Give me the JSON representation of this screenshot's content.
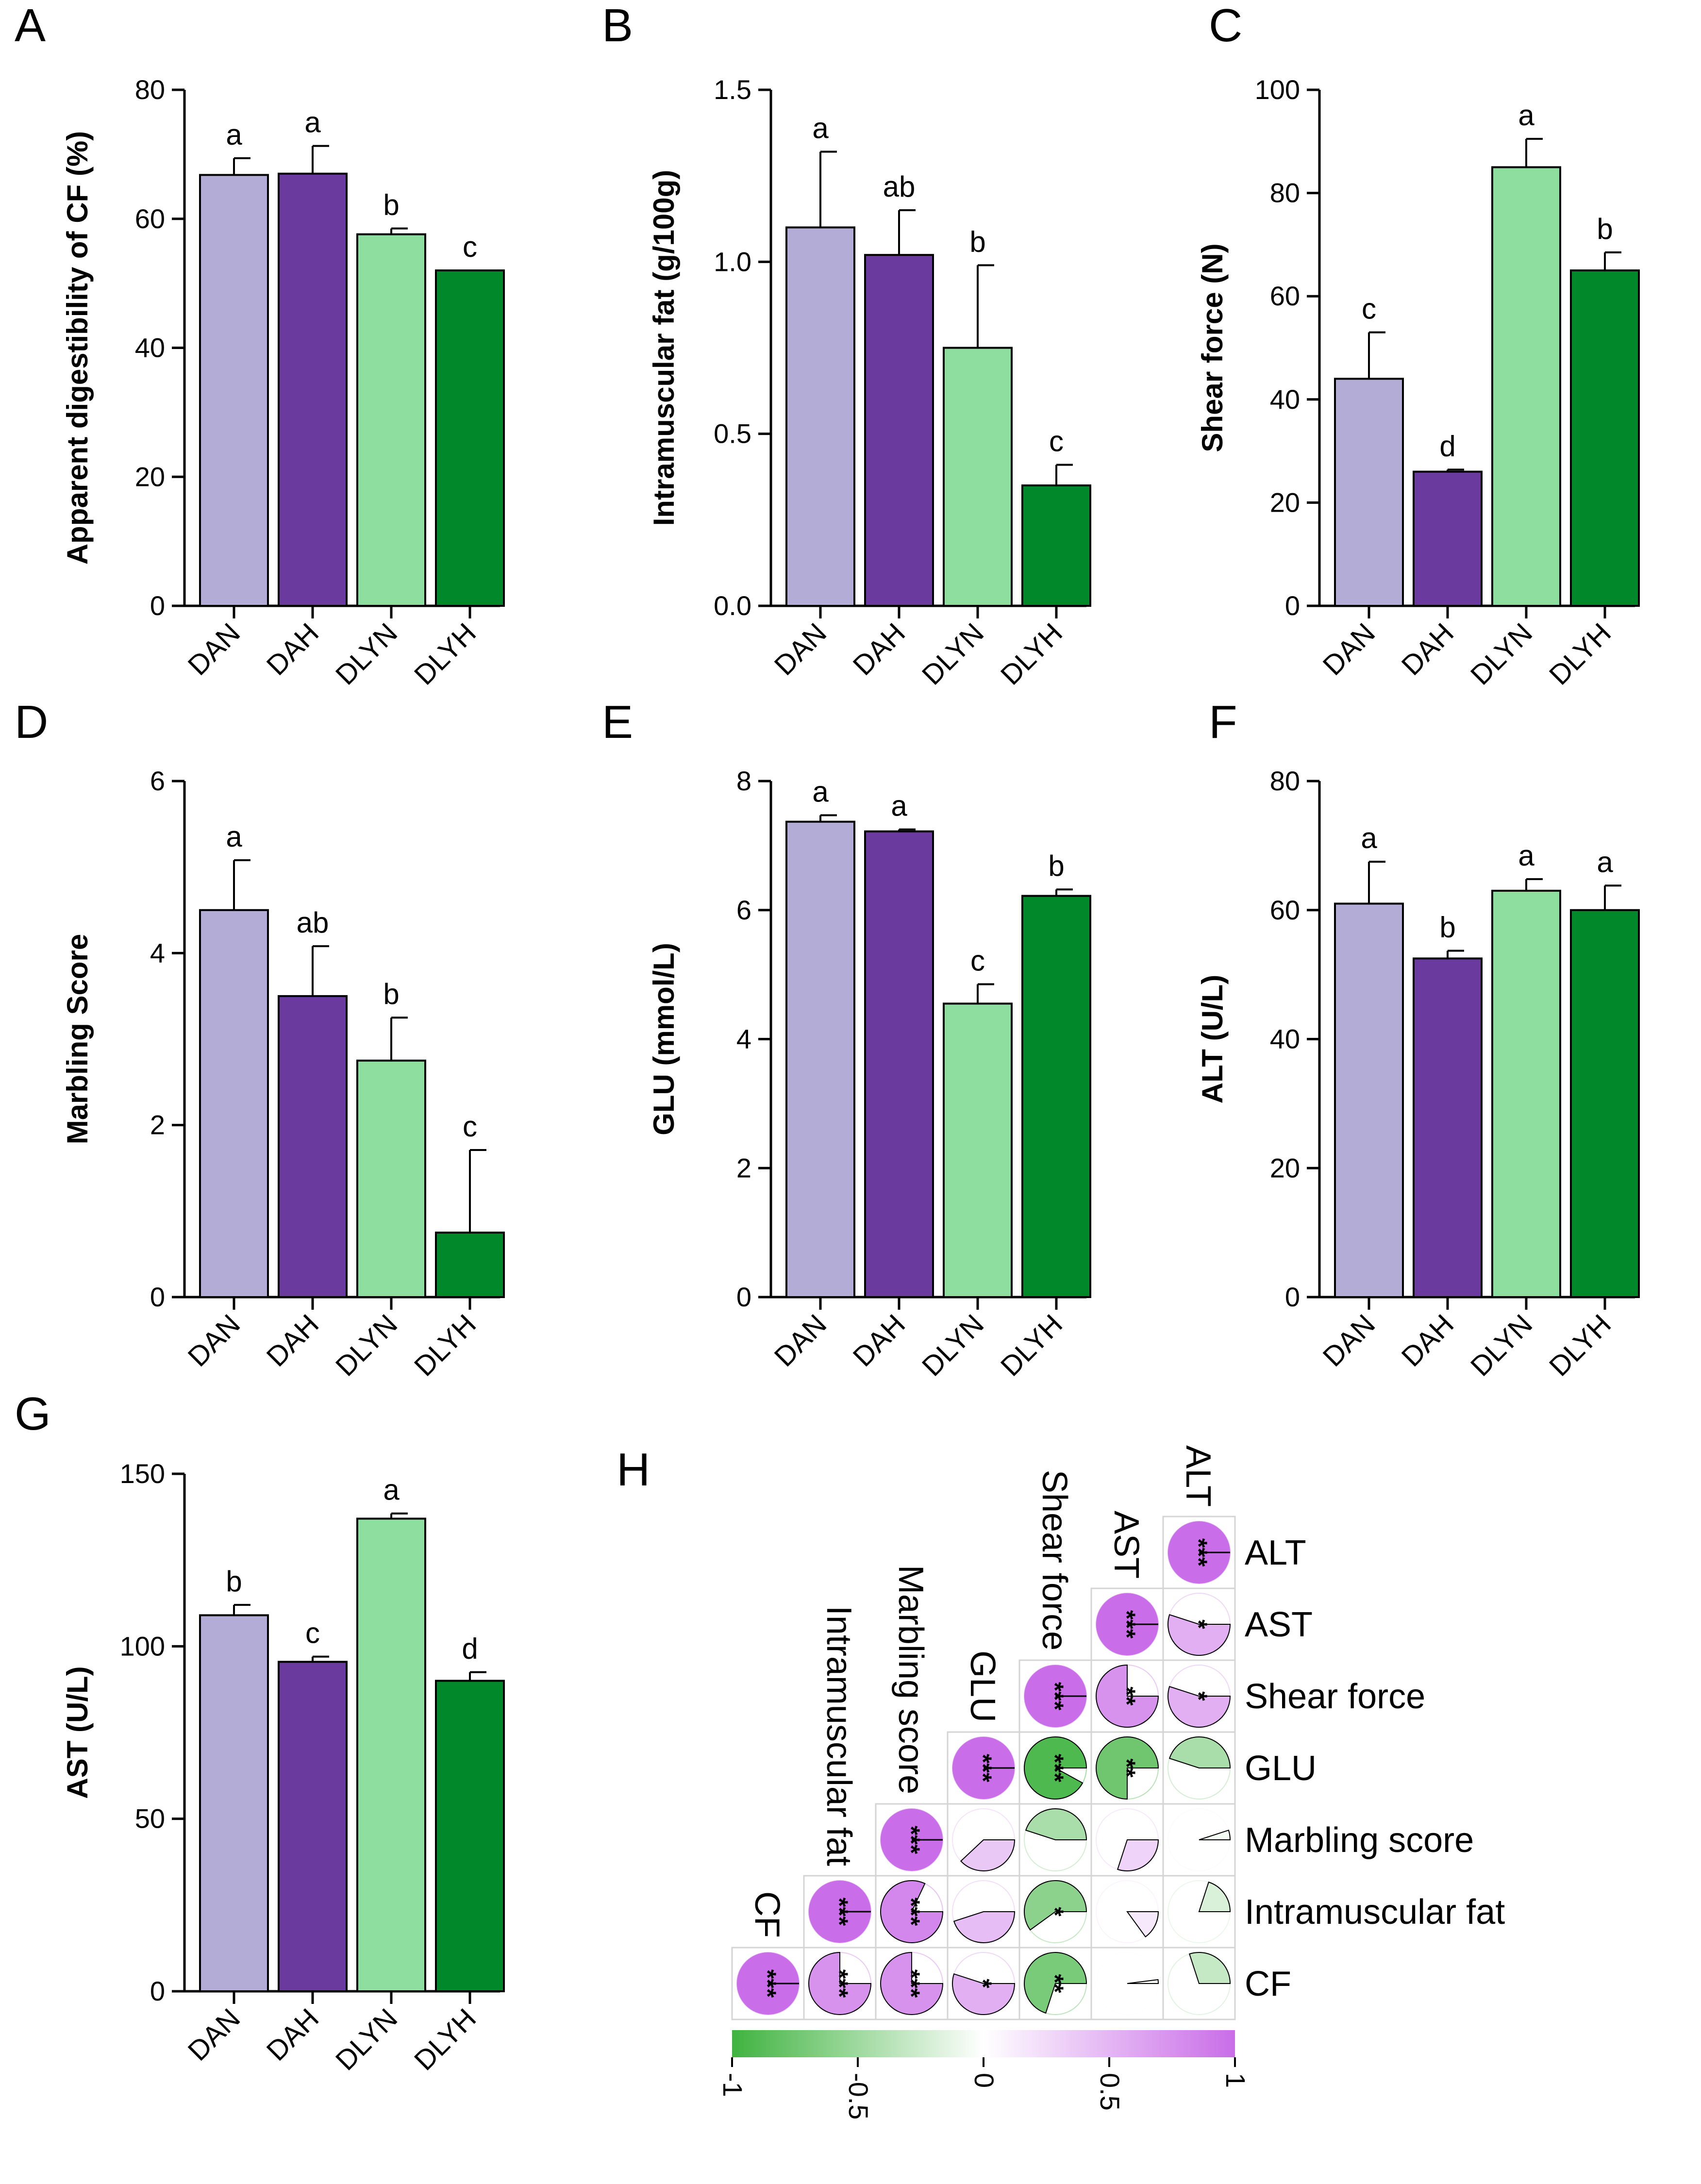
{
  "colors": {
    "DAN": "#b3acd6",
    "DAH": "#6a3a9e",
    "DLYN": "#8ede9f",
    "DLYH": "#00882a",
    "neg": "#3fb33f",
    "pos": "#c96de8"
  },
  "chart_data": [
    {
      "type": "bar",
      "panel": "A",
      "ylabel": "Apparent digestibility of CF (%)",
      "categories": [
        "DAN",
        "DAH",
        "DLYN",
        "DLYH"
      ],
      "values": [
        66.8,
        67.0,
        57.6,
        52.0
      ],
      "errors": [
        2.6,
        4.3,
        0.9,
        0.0
      ],
      "letters": [
        "a",
        "a",
        "b",
        "c"
      ],
      "ylim": [
        0,
        80
      ],
      "yticks": [
        "0",
        "20",
        "40",
        "60",
        "80"
      ]
    },
    {
      "type": "bar",
      "panel": "B",
      "ylabel": "Intramuscular fat (g/100g)",
      "categories": [
        "DAN",
        "DAH",
        "DLYN",
        "DLYH"
      ],
      "values": [
        1.1,
        1.02,
        0.75,
        0.35
      ],
      "errors": [
        0.22,
        0.13,
        0.24,
        0.06
      ],
      "letters": [
        "a",
        "ab",
        "b",
        "c"
      ],
      "ylim": [
        0,
        1.5
      ],
      "yticks": [
        "0.0",
        "0.5",
        "1.0",
        "1.5"
      ]
    },
    {
      "type": "bar",
      "panel": "C",
      "ylabel": "Shear force (N)",
      "categories": [
        "DAN",
        "DAH",
        "DLYN",
        "DLYH"
      ],
      "values": [
        44.0,
        26.0,
        85.0,
        65.0
      ],
      "errors": [
        9.0,
        0.4,
        5.5,
        3.5
      ],
      "letters": [
        "c",
        "d",
        "a",
        "b"
      ],
      "ylim": [
        0,
        100
      ],
      "yticks": [
        "0",
        "20",
        "40",
        "60",
        "80",
        "100"
      ]
    },
    {
      "type": "bar",
      "panel": "D",
      "ylabel": "Marbling Score",
      "categories": [
        "DAN",
        "DAH",
        "DLYN",
        "DLYH"
      ],
      "values": [
        4.5,
        3.5,
        2.75,
        0.75
      ],
      "errors": [
        0.58,
        0.58,
        0.5,
        0.96
      ],
      "letters": [
        "a",
        "ab",
        "b",
        "c"
      ],
      "ylim": [
        0,
        6
      ],
      "yticks": [
        "0",
        "2",
        "4",
        "6"
      ]
    },
    {
      "type": "bar",
      "panel": "E",
      "ylabel": "GLU (mmol/L)",
      "categories": [
        "DAN",
        "DAH",
        "DLYN",
        "DLYH"
      ],
      "values": [
        7.37,
        7.22,
        4.55,
        6.22
      ],
      "errors": [
        0.1,
        0.03,
        0.3,
        0.1
      ],
      "letters": [
        "a",
        "a",
        "c",
        "b"
      ],
      "ylim": [
        0,
        8
      ],
      "yticks": [
        "0",
        "2",
        "4",
        "6",
        "8"
      ]
    },
    {
      "type": "bar",
      "panel": "F",
      "ylabel": "ALT (U/L)",
      "categories": [
        "DAN",
        "DAH",
        "DLYN",
        "DLYH"
      ],
      "values": [
        61.0,
        52.5,
        63.0,
        60.0
      ],
      "errors": [
        6.5,
        1.2,
        1.8,
        3.8
      ],
      "letters": [
        "a",
        "b",
        "a",
        "a"
      ],
      "ylim": [
        0,
        80
      ],
      "yticks": [
        "0",
        "20",
        "40",
        "60",
        "80"
      ]
    },
    {
      "type": "bar",
      "panel": "G",
      "ylabel": "AST (U/L)",
      "categories": [
        "DAN",
        "DAH",
        "DLYN",
        "DLYH"
      ],
      "values": [
        109.0,
        95.5,
        137.0,
        90.0
      ],
      "errors": [
        3.0,
        1.5,
        1.5,
        2.5
      ],
      "letters": [
        "b",
        "c",
        "a",
        "d"
      ],
      "ylim": [
        0,
        150
      ],
      "yticks": [
        "0",
        "50",
        "100",
        "150"
      ]
    },
    {
      "type": "heatmap",
      "panel": "H",
      "variables": [
        "CF",
        "Intramuscular fat",
        "Marbling score",
        "GLU",
        "Shear force",
        "AST",
        "ALT"
      ],
      "col_labels": [
        "CF",
        "Intramuscular fat",
        "Marbling score",
        "GLU",
        "Shear force",
        "AST",
        "ALT"
      ],
      "row_labels": [
        "ALT",
        "AST",
        "Shear force",
        "GLU",
        "Marbling score",
        "Intramuscular fat",
        "CF"
      ],
      "cells": [
        {
          "row": "CF",
          "col": "CF",
          "r": 1.0,
          "stars": "***"
        },
        {
          "row": "Intramuscular fat",
          "col": "Intramuscular fat",
          "r": 1.0,
          "stars": "***"
        },
        {
          "row": "Marbling score",
          "col": "Marbling score",
          "r": 1.0,
          "stars": "***"
        },
        {
          "row": "GLU",
          "col": "GLU",
          "r": 1.0,
          "stars": "***"
        },
        {
          "row": "Shear force",
          "col": "Shear force",
          "r": 1.0,
          "stars": "***"
        },
        {
          "row": "AST",
          "col": "AST",
          "r": 1.0,
          "stars": "***"
        },
        {
          "row": "ALT",
          "col": "ALT",
          "r": 1.0,
          "stars": "***"
        },
        {
          "row": "AST",
          "col": "ALT",
          "r": 0.55,
          "stars": "*"
        },
        {
          "row": "Shear force",
          "col": "AST",
          "r": 0.75,
          "stars": "**"
        },
        {
          "row": "Shear force",
          "col": "ALT",
          "r": 0.55,
          "stars": "*"
        },
        {
          "row": "GLU",
          "col": "Shear force",
          "r": -0.92,
          "stars": "***"
        },
        {
          "row": "GLU",
          "col": "AST",
          "r": -0.75,
          "stars": "**"
        },
        {
          "row": "GLU",
          "col": "ALT",
          "r": -0.45,
          "stars": ""
        },
        {
          "row": "Marbling score",
          "col": "GLU",
          "r": 0.38,
          "stars": ""
        },
        {
          "row": "Marbling score",
          "col": "Shear force",
          "r": -0.45,
          "stars": ""
        },
        {
          "row": "Marbling score",
          "col": "AST",
          "r": 0.3,
          "stars": ""
        },
        {
          "row": "Marbling score",
          "col": "ALT",
          "r": -0.05,
          "stars": ""
        },
        {
          "row": "Intramuscular fat",
          "col": "Marbling score",
          "r": 0.82,
          "stars": "***"
        },
        {
          "row": "Intramuscular fat",
          "col": "GLU",
          "r": 0.45,
          "stars": ""
        },
        {
          "row": "Intramuscular fat",
          "col": "Shear force",
          "r": -0.6,
          "stars": "*"
        },
        {
          "row": "Intramuscular fat",
          "col": "AST",
          "r": 0.15,
          "stars": ""
        },
        {
          "row": "Intramuscular fat",
          "col": "ALT",
          "r": -0.2,
          "stars": ""
        },
        {
          "row": "CF",
          "col": "Intramuscular fat",
          "r": 0.75,
          "stars": "***"
        },
        {
          "row": "CF",
          "col": "Marbling score",
          "r": 0.75,
          "stars": "***"
        },
        {
          "row": "CF",
          "col": "GLU",
          "r": 0.55,
          "stars": "*"
        },
        {
          "row": "CF",
          "col": "Shear force",
          "r": -0.7,
          "stars": "**"
        },
        {
          "row": "CF",
          "col": "AST",
          "r": -0.02,
          "stars": ""
        },
        {
          "row": "CF",
          "col": "ALT",
          "r": -0.3,
          "stars": ""
        }
      ],
      "colorbar": {
        "ticks": [
          "-1",
          "-0.5",
          "0",
          "0.5",
          "1"
        ],
        "range": [
          -1,
          1
        ]
      }
    }
  ]
}
